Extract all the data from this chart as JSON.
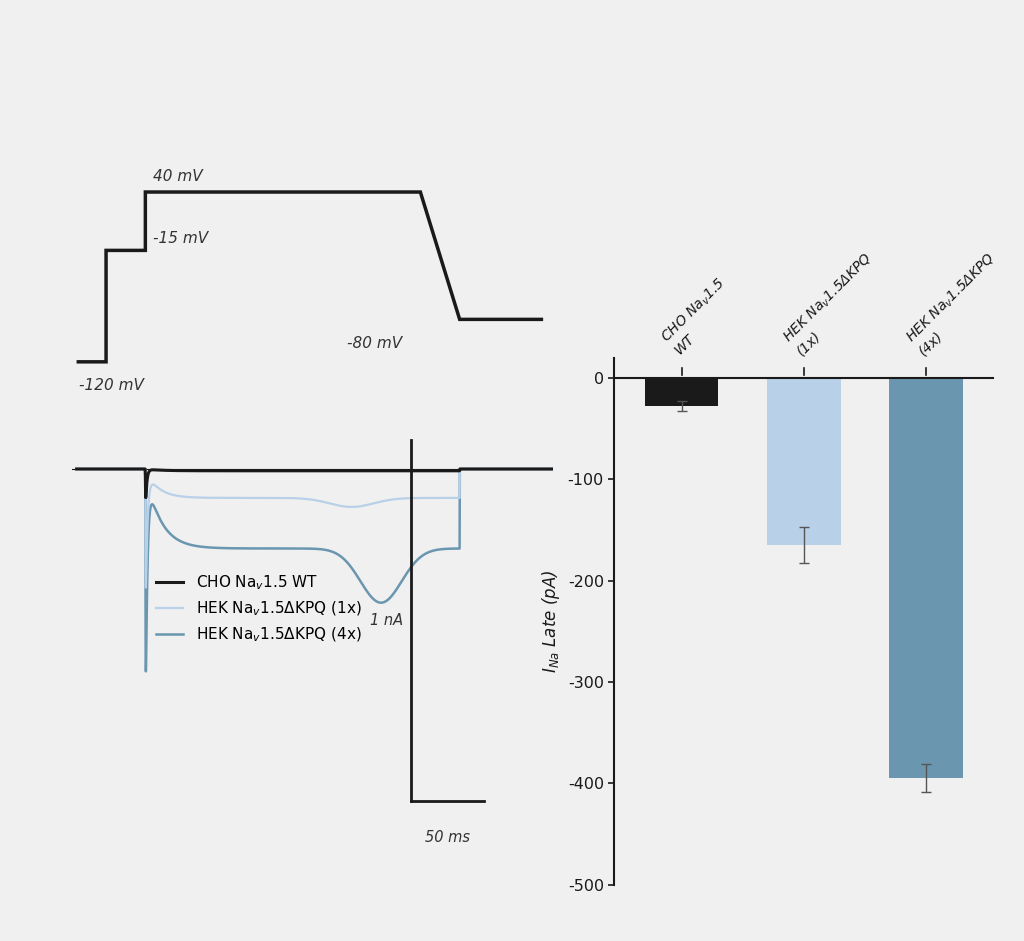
{
  "background_color": "#f0f0f0",
  "trace_colors": {
    "cho": "#1a1a1a",
    "hek_1x": "#b8d0e8",
    "hek_4x": "#6a96b0"
  },
  "bar_values": [
    -28,
    -165,
    -395
  ],
  "bar_errors": [
    5,
    18,
    14
  ],
  "bar_colors": [
    "#1a1a1a",
    "#b8d0e8",
    "#6a96b0"
  ],
  "ylabel": "I$_{Na}$ Late (pA)",
  "ylim": [
    -500,
    20
  ],
  "yticks": [
    0,
    -100,
    -200,
    -300,
    -400,
    -500
  ],
  "scale_bar_nA": "1 nA",
  "scale_bar_ms": "50 ms"
}
